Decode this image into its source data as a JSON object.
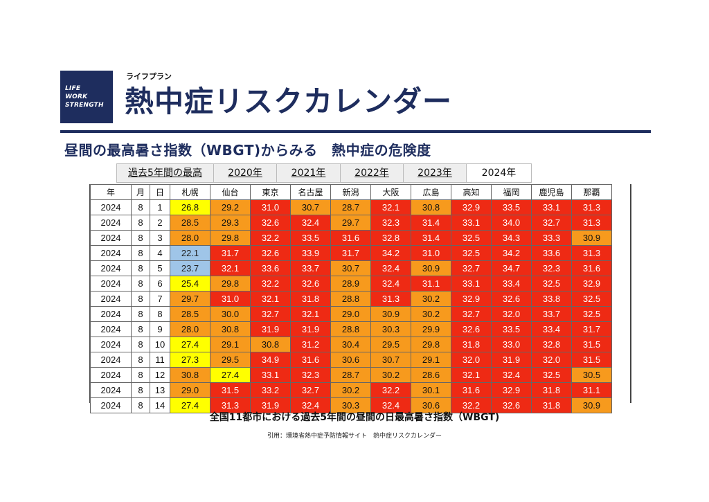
{
  "logo": {
    "lines": [
      "LIFE",
      "WORK",
      "STRENGTH"
    ]
  },
  "header": {
    "subtitle": "ライフプラン",
    "title": "熱中症リスクカレンダー"
  },
  "section_title": "昼間の最高暑さ指数（WBGT)からみる　熱中症の危険度",
  "tabs": [
    {
      "label": "過去5年間の最高",
      "active": false
    },
    {
      "label": "2020年",
      "active": false
    },
    {
      "label": "2021年",
      "active": false
    },
    {
      "label": "2022年",
      "active": false
    },
    {
      "label": "2023年",
      "active": false
    },
    {
      "label": "2024年",
      "active": true
    }
  ],
  "table": {
    "columns": [
      "年",
      "月",
      "日",
      "札幌",
      "仙台",
      "東京",
      "名古屋",
      "新潟",
      "大阪",
      "広島",
      "高知",
      "福岡",
      "鹿児島",
      "那覇"
    ],
    "rows": [
      {
        "year": "2024",
        "month": "8",
        "day": "1",
        "values": [
          "26.8",
          "29.2",
          "31.0",
          "30.7",
          "28.7",
          "32.1",
          "30.8",
          "32.9",
          "33.5",
          "33.1",
          "31.3"
        ]
      },
      {
        "year": "2024",
        "month": "8",
        "day": "2",
        "values": [
          "28.5",
          "29.3",
          "32.6",
          "32.4",
          "29.7",
          "32.3",
          "31.4",
          "33.1",
          "34.0",
          "32.7",
          "31.3"
        ]
      },
      {
        "year": "2024",
        "month": "8",
        "day": "3",
        "values": [
          "28.0",
          "29.8",
          "32.2",
          "33.5",
          "31.6",
          "32.8",
          "31.4",
          "32.5",
          "34.3",
          "33.3",
          "30.9"
        ]
      },
      {
        "year": "2024",
        "month": "8",
        "day": "4",
        "values": [
          "22.1",
          "31.7",
          "32.6",
          "33.9",
          "31.7",
          "34.2",
          "31.0",
          "32.5",
          "34.2",
          "33.6",
          "31.3"
        ]
      },
      {
        "year": "2024",
        "month": "8",
        "day": "5",
        "values": [
          "23.7",
          "32.1",
          "33.6",
          "33.7",
          "30.7",
          "32.4",
          "30.9",
          "32.7",
          "34.7",
          "32.3",
          "31.6"
        ]
      },
      {
        "year": "2024",
        "month": "8",
        "day": "6",
        "values": [
          "25.4",
          "29.8",
          "32.2",
          "32.6",
          "28.9",
          "32.4",
          "31.1",
          "33.1",
          "33.4",
          "32.5",
          "32.9"
        ]
      },
      {
        "year": "2024",
        "month": "8",
        "day": "7",
        "values": [
          "29.7",
          "31.0",
          "32.1",
          "31.8",
          "28.8",
          "31.3",
          "30.2",
          "32.9",
          "32.6",
          "33.8",
          "32.5"
        ]
      },
      {
        "year": "2024",
        "month": "8",
        "day": "8",
        "values": [
          "28.5",
          "30.0",
          "32.7",
          "32.1",
          "29.0",
          "30.9",
          "30.2",
          "32.7",
          "32.0",
          "33.7",
          "32.5"
        ]
      },
      {
        "year": "2024",
        "month": "8",
        "day": "9",
        "values": [
          "28.0",
          "30.8",
          "31.9",
          "31.9",
          "28.8",
          "30.3",
          "29.9",
          "32.6",
          "33.5",
          "33.4",
          "31.7"
        ]
      },
      {
        "year": "2024",
        "month": "8",
        "day": "10",
        "values": [
          "27.4",
          "29.1",
          "30.8",
          "31.2",
          "30.4",
          "29.5",
          "29.8",
          "31.8",
          "33.0",
          "32.8",
          "31.5"
        ]
      },
      {
        "year": "2024",
        "month": "8",
        "day": "11",
        "values": [
          "27.3",
          "29.5",
          "34.9",
          "31.6",
          "30.6",
          "30.7",
          "29.1",
          "32.0",
          "31.9",
          "32.0",
          "31.5"
        ]
      },
      {
        "year": "2024",
        "month": "8",
        "day": "12",
        "values": [
          "30.8",
          "27.4",
          "33.1",
          "32.3",
          "28.7",
          "30.2",
          "28.6",
          "32.1",
          "32.4",
          "32.5",
          "30.5"
        ]
      },
      {
        "year": "2024",
        "month": "8",
        "day": "13",
        "values": [
          "29.0",
          "31.5",
          "33.2",
          "32.7",
          "30.2",
          "32.2",
          "30.1",
          "31.6",
          "32.9",
          "31.8",
          "31.1"
        ]
      },
      {
        "year": "2024",
        "month": "8",
        "day": "14",
        "values": [
          "27.4",
          "31.3",
          "31.9",
          "32.4",
          "30.3",
          "32.4",
          "30.6",
          "32.2",
          "32.6",
          "31.8",
          "30.9"
        ]
      }
    ]
  },
  "colors": {
    "navy": "#1e2d5e",
    "blue": "#9fc5e8",
    "yellow": "#ffff00",
    "orange": "#f79a1d",
    "red": "#ee2a14"
  },
  "caption": "全国11都市における過去5年間の昼間の日最高暑さ指数（WBGT)",
  "citation": "引用：環境省熱中症予防情報サイト　熱中症リスクカレンダー"
}
